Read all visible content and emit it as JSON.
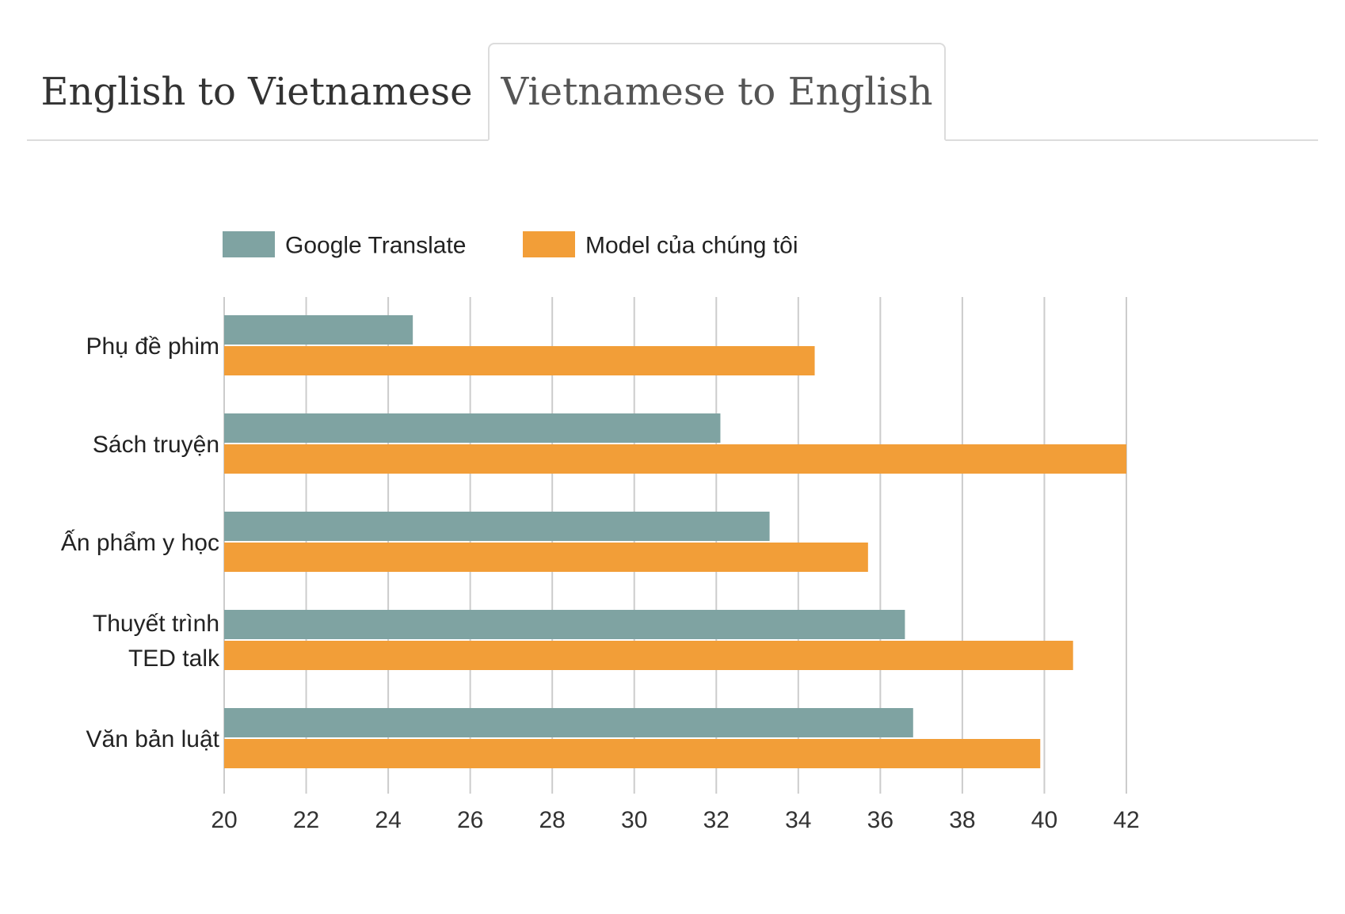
{
  "tabs": [
    {
      "label": "English to Vietnamese",
      "active": false
    },
    {
      "label": "Vietnamese to English",
      "active": true
    }
  ],
  "colors": {
    "google": "#7fa3a2",
    "model": "#f29e38",
    "grid": "#cccccc",
    "text": "#222222",
    "tick_text": "#333333",
    "tab_border": "#dcdcdc"
  },
  "chart_data": {
    "type": "bar",
    "orientation": "horizontal",
    "categories": [
      [
        "Phụ đề phim"
      ],
      [
        "Sách truyện"
      ],
      [
        "Ấn phẩm y học"
      ],
      [
        "Thuyết trình",
        "TED talk"
      ],
      [
        "Văn bản luật"
      ]
    ],
    "series": [
      {
        "name": "Google Translate",
        "color": "#7fa3a2",
        "values": [
          24.6,
          32.1,
          33.3,
          36.6,
          36.8
        ]
      },
      {
        "name": "Model của chúng tôi",
        "color": "#f29e38",
        "values": [
          34.4,
          42.0,
          35.7,
          40.7,
          39.9
        ]
      }
    ],
    "xlim": [
      20,
      42
    ],
    "xticks": [
      20,
      22,
      24,
      26,
      28,
      30,
      32,
      34,
      36,
      38,
      40,
      42
    ],
    "grid": true,
    "legend": "top-left"
  }
}
